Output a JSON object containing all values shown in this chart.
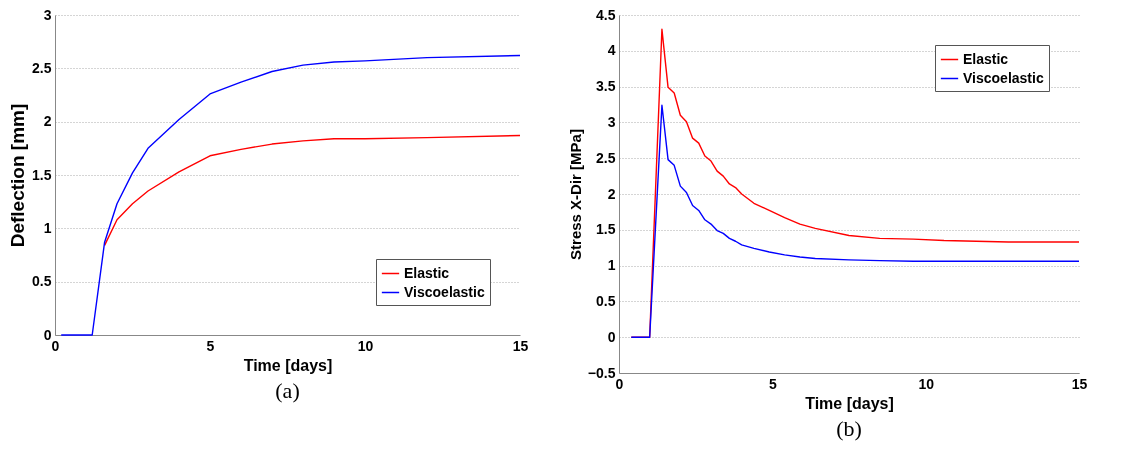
{
  "chart_data": [
    {
      "type": "line",
      "title": "(a)",
      "xlabel": "Time [days]",
      "ylabel": "Deflection [mm]",
      "xlim": [
        0,
        15
      ],
      "xticks": [
        0,
        5,
        10,
        15
      ],
      "ylim": [
        0,
        3
      ],
      "yticks": [
        0,
        0.5,
        1,
        1.5,
        2,
        2.5,
        3
      ],
      "grid": "y",
      "legend": "bottom right",
      "line_style": "solid",
      "x": [
        0.2,
        1.2,
        1.6,
        2,
        2.5,
        3,
        4,
        5,
        6,
        7,
        8,
        9,
        10,
        12,
        15
      ],
      "series": [
        {
          "name": "Elastic",
          "color": "#ff0000",
          "values": [
            null,
            null,
            0.84,
            1.08,
            1.23,
            1.35,
            1.53,
            1.68,
            1.74,
            1.79,
            1.82,
            1.84,
            1.84,
            1.85,
            1.87
          ]
        },
        {
          "name": "Viscoelastic",
          "color": "#0000ff",
          "values": [
            0,
            0,
            0.87,
            1.23,
            1.52,
            1.75,
            2.02,
            2.26,
            2.37,
            2.47,
            2.53,
            2.56,
            2.57,
            2.6,
            2.62
          ]
        }
      ]
    },
    {
      "type": "line",
      "title": "(b)",
      "xlabel": "Time [days]",
      "ylabel": "Stress X-Dir [MPa]",
      "xlim": [
        0,
        15
      ],
      "xticks": [
        0,
        5,
        10,
        15
      ],
      "ylim": [
        -0.5,
        4.5
      ],
      "yticks": [
        -0.5,
        0,
        0.5,
        1,
        1.5,
        2,
        2.5,
        3,
        3.5,
        4,
        4.5
      ],
      "grid": "y",
      "legend": "top right",
      "line_style": "solid",
      "x": [
        0.4,
        1,
        1.4,
        1.6,
        1.8,
        2,
        2.2,
        2.4,
        2.6,
        2.8,
        3,
        3.2,
        3.4,
        3.6,
        3.8,
        4,
        4.4,
        4.9,
        5.4,
        5.9,
        6.4,
        7.5,
        8.5,
        9.6,
        10.6,
        12.7,
        15
      ],
      "series": [
        {
          "name": "Elastic",
          "color": "#ff0000",
          "values": [
            0,
            0,
            4.3,
            3.49,
            3.41,
            3.1,
            3.01,
            2.78,
            2.71,
            2.53,
            2.46,
            2.32,
            2.25,
            2.14,
            2.09,
            2.0,
            1.87,
            1.77,
            1.67,
            1.58,
            1.52,
            1.42,
            1.38,
            1.37,
            1.35,
            1.33,
            1.33
          ]
        },
        {
          "name": "Viscoelastic",
          "color": "#0000ff",
          "values": [
            0,
            0,
            3.24,
            2.48,
            2.4,
            2.11,
            2.02,
            1.84,
            1.77,
            1.64,
            1.58,
            1.49,
            1.45,
            1.38,
            1.34,
            1.29,
            1.24,
            1.19,
            1.15,
            1.12,
            1.1,
            1.08,
            1.07,
            1.06,
            1.06,
            1.06,
            1.06
          ]
        }
      ]
    }
  ]
}
